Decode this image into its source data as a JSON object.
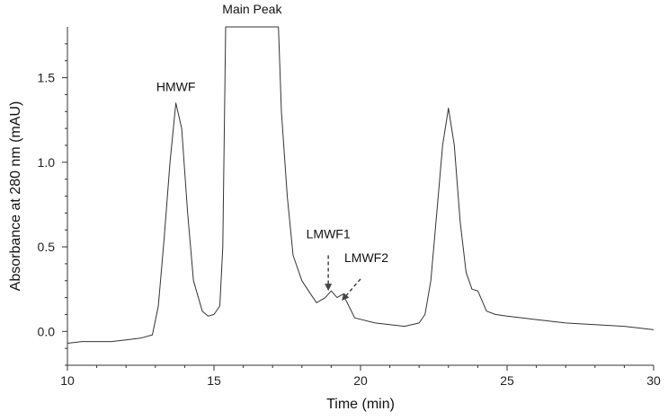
{
  "chart_data": {
    "type": "line",
    "title": "",
    "xlabel": "Time (min)",
    "ylabel": "Absorbance at 280 nm (mAU)",
    "xlim": [
      10,
      30
    ],
    "ylim": [
      -0.2,
      1.8
    ],
    "x_ticks": [
      10,
      15,
      20,
      25,
      30
    ],
    "y_ticks": [
      0.0,
      0.5,
      1.0,
      1.5
    ],
    "y_tick_labels": [
      "0.0",
      "0.5",
      "1.0",
      "1.5"
    ],
    "grid": false,
    "legend": "none",
    "line_color": "#333333",
    "series": [
      {
        "x": [
          10.0,
          10.5,
          11.0,
          11.5,
          12.0,
          12.5,
          12.9,
          13.1,
          13.3,
          13.5,
          13.7,
          13.9,
          14.1,
          14.3,
          14.6,
          14.8,
          15.0,
          15.2,
          15.3,
          15.4,
          17.2,
          17.3,
          17.5,
          17.7,
          18.0,
          18.3,
          18.5,
          18.8,
          19.0,
          19.2,
          19.4,
          19.6,
          19.8,
          20.5,
          21.0,
          21.5,
          22.0,
          22.2,
          22.4,
          22.6,
          22.8,
          23.0,
          23.2,
          23.4,
          23.6,
          23.8,
          24.0,
          24.3,
          24.6,
          25.0,
          26.0,
          27.0,
          28.0,
          29.0,
          30.0
        ],
        "y": [
          -0.07,
          -0.06,
          -0.06,
          -0.06,
          -0.05,
          -0.04,
          -0.02,
          0.15,
          0.55,
          1.0,
          1.35,
          1.2,
          0.7,
          0.3,
          0.12,
          0.09,
          0.1,
          0.15,
          0.5,
          1.8,
          1.8,
          1.3,
          0.8,
          0.45,
          0.3,
          0.22,
          0.17,
          0.2,
          0.24,
          0.2,
          0.22,
          0.15,
          0.08,
          0.05,
          0.04,
          0.03,
          0.05,
          0.1,
          0.3,
          0.7,
          1.1,
          1.32,
          1.1,
          0.65,
          0.35,
          0.25,
          0.24,
          0.12,
          0.1,
          0.09,
          0.07,
          0.05,
          0.04,
          0.03,
          0.01
        ]
      }
    ],
    "annotations": [
      {
        "text": "HMWF",
        "x": 13.7,
        "y": 1.42
      },
      {
        "text": "Main Peak",
        "x": 16.3,
        "y": 1.88
      },
      {
        "text": "LMWF1",
        "x": 18.9,
        "y": 0.55
      },
      {
        "text": "LMWF2",
        "x": 20.2,
        "y": 0.41
      }
    ],
    "arrows": [
      {
        "from": [
          18.9,
          0.45
        ],
        "to": [
          18.9,
          0.25
        ]
      },
      {
        "from": [
          20.0,
          0.31
        ],
        "to": [
          19.4,
          0.19
        ]
      }
    ]
  }
}
